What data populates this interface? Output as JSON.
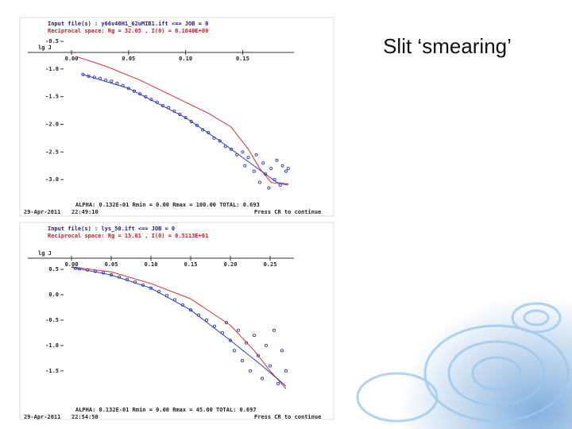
{
  "slide_title": "Slit ‘smearing’",
  "chart_data": [
    {
      "type": "scatter",
      "header_lines": [
        "Input file(s) : y66v40H1_62uMIB1.ift <== JOB = 0",
        "Reciprocal space: Rg =  32.05   , I(0) =  0.1040E+00"
      ],
      "ylabel": "lg J",
      "footer": "ALPHA:   0.132E-01   Rmin =   0.00  Rmax =  100.00   TOTAL: 0.693",
      "date": "29-Apr-2011",
      "time": "22:49:10",
      "prompt": "Press CR to continue",
      "xlim": [
        -0.007,
        0.195
      ],
      "ylim": [
        -3.2,
        -0.7
      ],
      "xticks": [
        {
          "value": 0,
          "label": "0.00"
        },
        {
          "value": 0.05,
          "label": "0.05"
        },
        {
          "value": 0.1,
          "label": "0.10"
        },
        {
          "value": 0.15,
          "label": "0.15"
        }
      ],
      "yticks": [
        -0.5,
        {
          "value": -1,
          "label": "-1.0"
        },
        -1.5,
        {
          "value": -2,
          "label": "-2.0"
        },
        -2.5,
        {
          "value": -3,
          "label": "-3.0"
        }
      ],
      "series": [
        {
          "mode": "points",
          "color": "#2b3bc4",
          "x": [
            0.01,
            0.015,
            0.02,
            0.025,
            0.03,
            0.035,
            0.04,
            0.045,
            0.05,
            0.055,
            0.06,
            0.065,
            0.07,
            0.075,
            0.08,
            0.085,
            0.09,
            0.095,
            0.1,
            0.105,
            0.11,
            0.115,
            0.12,
            0.125,
            0.13,
            0.135,
            0.14,
            0.145,
            0.15,
            0.152,
            0.155,
            0.16,
            0.162,
            0.165,
            0.168,
            0.17,
            0.173,
            0.175,
            0.178,
            0.18,
            0.183,
            0.185,
            0.188,
            0.19
          ],
          "values": [
            -1.1,
            -1.13,
            -1.15,
            -1.17,
            -1.2,
            -1.22,
            -1.26,
            -1.3,
            -1.35,
            -1.4,
            -1.45,
            -1.5,
            -1.55,
            -1.6,
            -1.66,
            -1.7,
            -1.76,
            -1.82,
            -1.88,
            -1.95,
            -2.02,
            -2.1,
            -2.15,
            -2.25,
            -2.3,
            -2.4,
            -2.45,
            -2.55,
            -2.5,
            -2.75,
            -2.6,
            -2.85,
            -2.55,
            -3.05,
            -2.7,
            -2.9,
            -3.15,
            -2.8,
            -3.0,
            -2.65,
            -3.1,
            -2.75,
            -2.85,
            -2.8
          ]
        },
        {
          "mode": "line",
          "color": "#d03030",
          "x": [
            0.005,
            0.03,
            0.06,
            0.09,
            0.12,
            0.14,
            0.155,
            0.165,
            0.175,
            0.19
          ],
          "values": [
            -0.78,
            -0.95,
            -1.2,
            -1.5,
            -1.8,
            -2.05,
            -2.45,
            -2.8,
            -3.05,
            -3.1
          ]
        },
        {
          "mode": "line",
          "color": "#2b3bc4",
          "x": [
            0.01,
            0.05,
            0.1,
            0.13,
            0.15,
            0.17,
            0.18,
            0.19
          ],
          "values": [
            -1.1,
            -1.35,
            -1.88,
            -2.3,
            -2.6,
            -2.9,
            -3.05,
            -3.08
          ]
        }
      ]
    },
    {
      "type": "scatter",
      "header_lines": [
        "Input file(s) : lys_50.ift <== JOB = 0",
        "Reciprocal space: Rg =  15.01   , I(0) =  0.5113E+01"
      ],
      "ylabel": "lg J",
      "footer": "ALPHA:   0.132E-01   Rmin =   0.00  Rmax =   45.00   TOTAL: 0.697",
      "date": "29-Apr-2011",
      "time": "22:54:50",
      "prompt": "Press CR to continue",
      "xlim": [
        -0.01,
        0.28
      ],
      "ylim": [
        -1.94,
        0.72
      ],
      "xticks": [
        {
          "value": 0,
          "label": "0.00"
        },
        {
          "value": 0.05,
          "label": "0.05"
        },
        {
          "value": 0.1,
          "label": "0.10"
        },
        {
          "value": 0.15,
          "label": "0.15"
        },
        {
          "value": 0.2,
          "label": "0.20"
        },
        0.25
      ],
      "yticks": [
        0.5,
        {
          "value": 0,
          "label": "0.0"
        },
        -0.5,
        {
          "value": -1,
          "label": "-1.0"
        },
        -1.5
      ],
      "series": [
        {
          "mode": "points",
          "color": "#2b3bc4",
          "x": [
            0.005,
            0.01,
            0.02,
            0.03,
            0.04,
            0.05,
            0.06,
            0.07,
            0.08,
            0.09,
            0.1,
            0.11,
            0.12,
            0.13,
            0.14,
            0.15,
            0.16,
            0.17,
            0.18,
            0.19,
            0.195,
            0.2,
            0.205,
            0.21,
            0.215,
            0.22,
            0.225,
            0.23,
            0.235,
            0.24,
            0.245,
            0.25,
            0.255,
            0.26,
            0.265,
            0.27
          ],
          "values": [
            0.52,
            0.51,
            0.49,
            0.46,
            0.43,
            0.39,
            0.35,
            0.3,
            0.25,
            0.19,
            0.13,
            0.06,
            -0.02,
            -0.1,
            -0.2,
            -0.3,
            -0.4,
            -0.5,
            -0.62,
            -0.75,
            -0.55,
            -0.9,
            -1.1,
            -0.7,
            -1.3,
            -0.95,
            -1.5,
            -0.8,
            -1.2,
            -1.65,
            -1.0,
            -1.4,
            -0.7,
            -1.75,
            -1.1,
            -1.5
          ]
        },
        {
          "mode": "line",
          "color": "#d03030",
          "x": [
            0,
            0.05,
            0.1,
            0.15,
            0.2,
            0.23,
            0.25,
            0.27
          ],
          "values": [
            0.55,
            0.45,
            0.22,
            -0.08,
            -0.6,
            -1.1,
            -1.5,
            -1.85
          ]
        },
        {
          "mode": "line",
          "color": "#2b3bc4",
          "x": [
            0,
            0.05,
            0.1,
            0.15,
            0.2,
            0.24,
            0.27
          ],
          "values": [
            0.54,
            0.39,
            0.13,
            -0.3,
            -0.9,
            -1.4,
            -1.8
          ]
        }
      ]
    }
  ]
}
